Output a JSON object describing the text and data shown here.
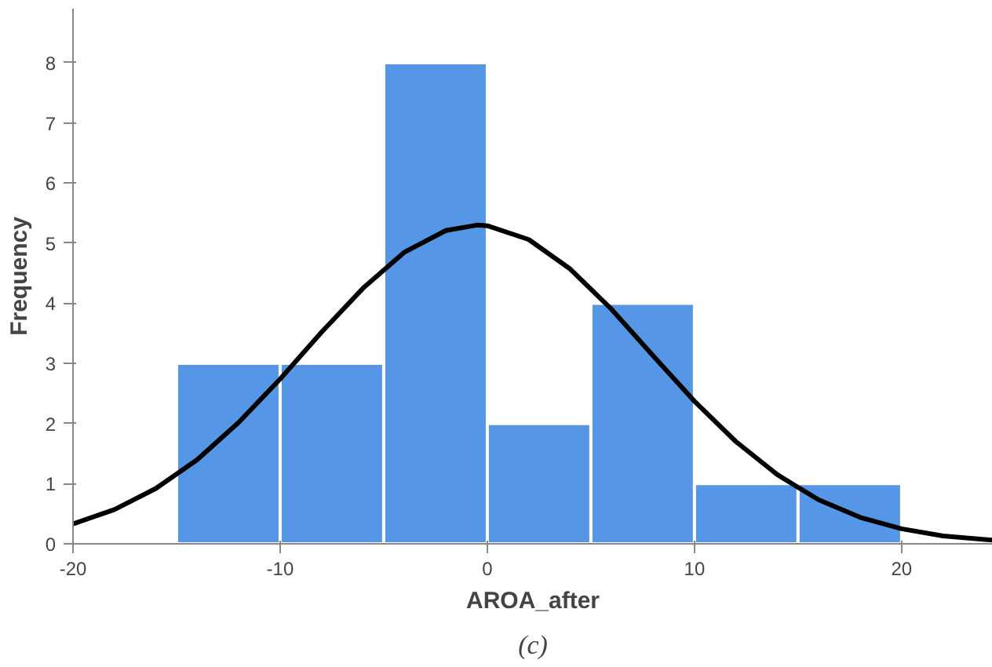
{
  "chart_data": {
    "type": "histogram",
    "xlabel": "AROA_after",
    "ylabel": "Frequency",
    "bins": [
      -15,
      -10,
      -5,
      0,
      5,
      10,
      15,
      20
    ],
    "values": [
      3,
      3,
      8,
      2,
      4,
      1,
      1
    ],
    "color": "#5596e6",
    "series": [
      {
        "type": "line",
        "color": "#000000",
        "x": [
          -20,
          -18,
          -16,
          -14,
          -12,
          -10,
          -8,
          -6,
          -4,
          -2,
          -0.5,
          0,
          2,
          4,
          6,
          8,
          10,
          12,
          14,
          16,
          18,
          20,
          22,
          24.4
        ],
        "values": [
          0.33,
          0.57,
          0.92,
          1.4,
          2.02,
          2.74,
          3.52,
          4.25,
          4.85,
          5.21,
          5.3,
          5.29,
          5.06,
          4.57,
          3.9,
          3.13,
          2.37,
          1.7,
          1.15,
          0.73,
          0.44,
          0.25,
          0.13,
          0.06
        ]
      }
    ],
    "xlim": [
      -20,
      24.4
    ],
    "ylim": [
      0,
      8.9
    ],
    "xticks": [
      -20,
      -10,
      0,
      10,
      20
    ],
    "yticks": [
      0,
      1,
      2,
      3,
      4,
      5,
      6,
      7,
      8
    ],
    "grid": false,
    "line_style": "solid",
    "marker": "none",
    "annotations": [
      "(c)"
    ]
  }
}
